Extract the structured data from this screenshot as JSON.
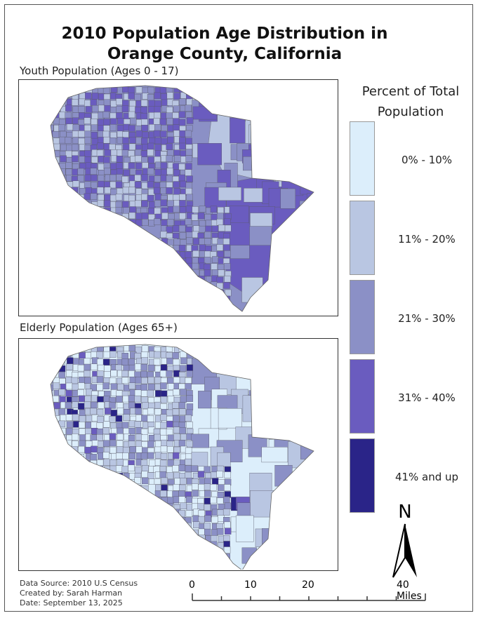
{
  "title_line1": "2010 Population Age Distribution in",
  "title_line2": "Orange County, California",
  "maps": [
    {
      "title": "Youth Population (Ages 0 - 17)",
      "dominant_classes": [
        1,
        2,
        3
      ],
      "notable_class": 3
    },
    {
      "title": "Elderly Population (Ages 65+)",
      "dominant_classes": [
        0,
        1,
        2
      ],
      "notable_class": 4
    }
  ],
  "legend": {
    "title_line1": "Percent of Total",
    "title_line2": "Population",
    "classes": [
      {
        "label": "0% - 10%",
        "color": "#dceefb"
      },
      {
        "label": "11% - 20%",
        "color": "#b9c6e2"
      },
      {
        "label": "21% - 30%",
        "color": "#8b90c6"
      },
      {
        "label": "31% - 40%",
        "color": "#6a5cbf"
      },
      {
        "label": "41% and up",
        "color": "#2a2488"
      }
    ]
  },
  "north_arrow": {
    "label": "N",
    "icon": "north-arrow-icon"
  },
  "scale_bar": {
    "ticks": [
      "0",
      "10",
      "20"
    ],
    "end_label": "40 Miles"
  },
  "credits": {
    "source": "Data Source: 2010 U.S Census",
    "author": "Created by: Sarah Harman",
    "date": "Date: September 13, 2025"
  }
}
